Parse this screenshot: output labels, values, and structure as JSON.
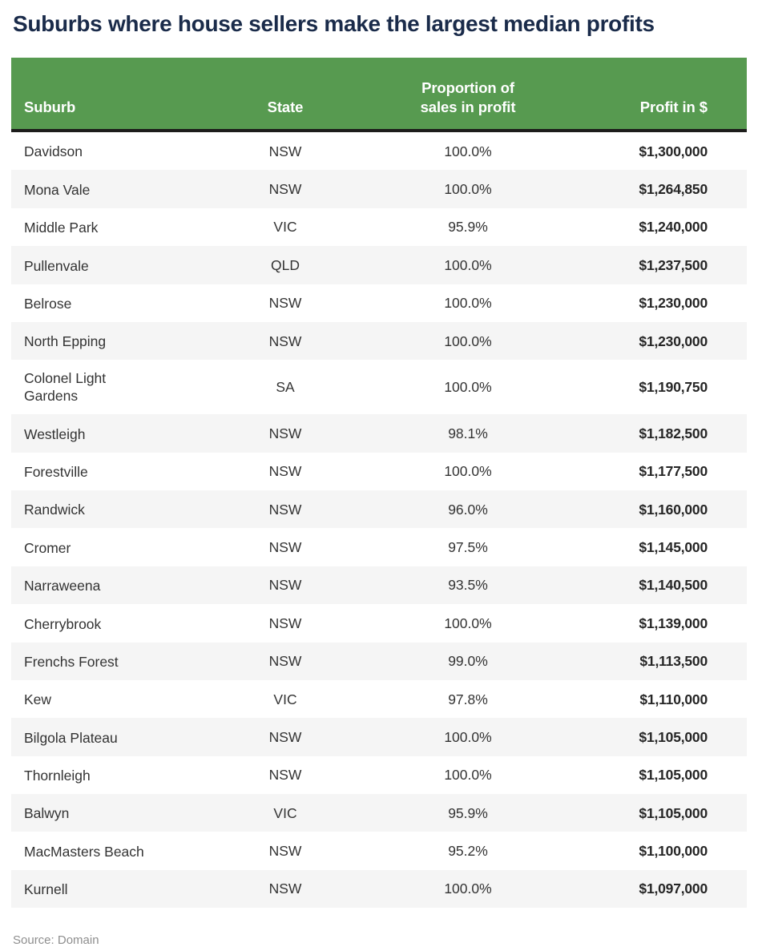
{
  "title": "Suburbs where house sellers make the largest median profits",
  "source": "Source: Domain",
  "colors": {
    "header_bg": "#579a50",
    "header_text": "#ffffff",
    "header_border": "#1d1d1b",
    "title_text": "#1a2b4a",
    "row_alt_bg": "#f5f5f5",
    "body_text": "#333333",
    "profit_text": "#262626",
    "source_text": "#8e8e8e"
  },
  "table": {
    "headers": [
      "Suburb",
      "State",
      "Proportion of sales in profit",
      "Profit in $"
    ]
  },
  "chart_data": {
    "type": "table",
    "title": "Suburbs where house sellers make the largest median profits",
    "columns": [
      "Suburb",
      "State",
      "Proportion of sales in profit",
      "Profit in $"
    ],
    "rows": [
      [
        "Davidson",
        "NSW",
        "100.0%",
        "$1,300,000"
      ],
      [
        "Mona Vale",
        "NSW",
        "100.0%",
        "$1,264,850"
      ],
      [
        "Middle Park",
        "VIC",
        "95.9%",
        "$1,240,000"
      ],
      [
        "Pullenvale",
        "QLD",
        "100.0%",
        "$1,237,500"
      ],
      [
        "Belrose",
        "NSW",
        "100.0%",
        "$1,230,000"
      ],
      [
        "North Epping",
        "NSW",
        "100.0%",
        "$1,230,000"
      ],
      [
        "Colonel Light Gardens",
        "SA",
        "100.0%",
        "$1,190,750"
      ],
      [
        "Westleigh",
        "NSW",
        "98.1%",
        "$1,182,500"
      ],
      [
        "Forestville",
        "NSW",
        "100.0%",
        "$1,177,500"
      ],
      [
        "Randwick",
        "NSW",
        "96.0%",
        "$1,160,000"
      ],
      [
        "Cromer",
        "NSW",
        "97.5%",
        "$1,145,000"
      ],
      [
        "Narraweena",
        "NSW",
        "93.5%",
        "$1,140,500"
      ],
      [
        "Cherrybrook",
        "NSW",
        "100.0%",
        "$1,139,000"
      ],
      [
        "Frenchs Forest",
        "NSW",
        "99.0%",
        "$1,113,500"
      ],
      [
        "Kew",
        "VIC",
        "97.8%",
        "$1,110,000"
      ],
      [
        "Bilgola Plateau",
        "NSW",
        "100.0%",
        "$1,105,000"
      ],
      [
        "Thornleigh",
        "NSW",
        "100.0%",
        "$1,105,000"
      ],
      [
        "Balwyn",
        "VIC",
        "95.9%",
        "$1,105,000"
      ],
      [
        "MacMasters Beach",
        "NSW",
        "95.2%",
        "$1,100,000"
      ],
      [
        "Kurnell",
        "NSW",
        "100.0%",
        "$1,097,000"
      ]
    ],
    "source": "Source: Domain"
  }
}
